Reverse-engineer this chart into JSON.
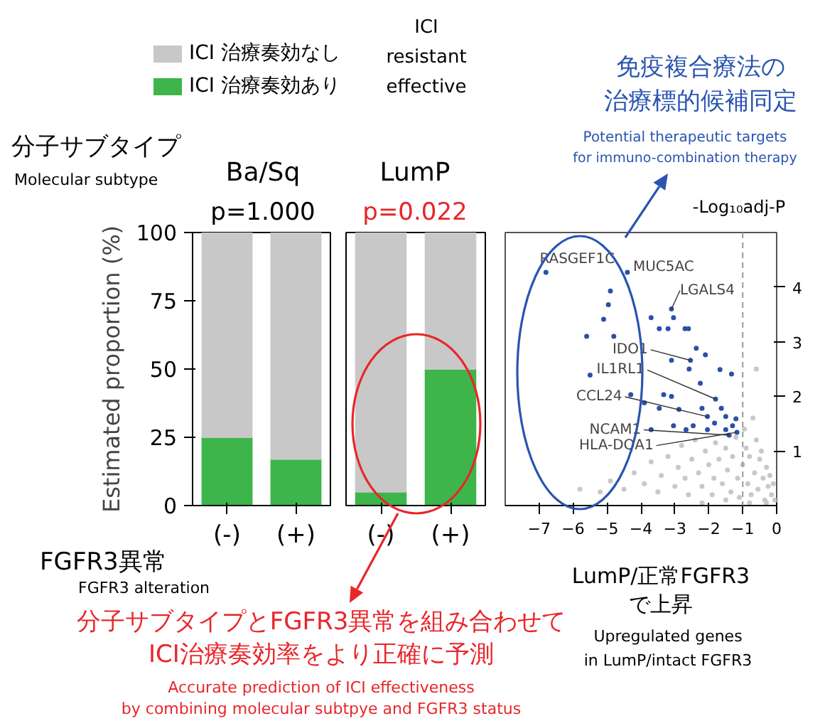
{
  "chart_data": [
    {
      "type": "bar",
      "stacked": true,
      "title": "Ba/Sq",
      "subtitle": "p=1.000",
      "categories": [
        "(-)",
        "(+)"
      ],
      "ylim": [
        0,
        100
      ],
      "yticks": [
        0,
        25,
        50,
        75,
        100
      ],
      "ylabel": "Estimated proportion (%)",
      "xlabel": "FGFR3異常",
      "legend": "top",
      "grid": false,
      "series": [
        {
          "name": "ICI 治療奏効あり",
          "color": "#3db54a",
          "values": [
            25,
            17
          ]
        },
        {
          "name": "ICI 治療奏効なし",
          "color": "#c8c8c8",
          "values": [
            75,
            83
          ]
        }
      ],
      "annotations": [
        "ICI",
        "resistant",
        "effective",
        "分子サブタイプ",
        "Molecular subtype",
        "FGFR3 alteration",
        "分子サブタイプとFGFR3異常を組み合わせて",
        "ICI治療奏効率をより正確に予測",
        "Accurate prediction of ICI effectiveness",
        "by combining molecular subtpye and FGFR3 status"
      ]
    },
    {
      "type": "bar",
      "stacked": true,
      "title": "LumP",
      "subtitle": "p=0.022",
      "categories": [
        "(-)",
        "(+)"
      ],
      "ylim": [
        0,
        100
      ],
      "tick_labels": "x",
      "grid": false,
      "series": [
        {
          "color": "#3db54a",
          "values": [
            5,
            50
          ]
        },
        {
          "color": "#c8c8c8",
          "values": [
            95,
            50
          ]
        }
      ]
    },
    {
      "type": "scatter",
      "xlim": [
        -8,
        0
      ],
      "xticks": [
        -7,
        -6,
        -5,
        -4,
        -3,
        -2,
        -1,
        0
      ],
      "ylim": [
        0,
        5
      ],
      "yticks": [
        1,
        2,
        3,
        4
      ],
      "ylabel": "-Log₁₀adj-P",
      "grid": false,
      "marker": "circle",
      "ref_lines": [
        {
          "axis": "x",
          "value": -1,
          "color": "#999999",
          "line_style": "dashed"
        }
      ],
      "series": [
        {
          "color": "#c8c8c8",
          "x": [
            -5.8,
            -5.2,
            -4.9,
            -4.5,
            -4.2,
            -3.9,
            -3.7,
            -3.5,
            -3.4,
            -3.2,
            -3.0,
            -2.9,
            -2.8,
            -2.7,
            -2.6,
            -2.5,
            -2.4,
            -2.3,
            -2.2,
            -2.1,
            -2.0,
            -1.9,
            -1.85,
            -1.8,
            -1.7,
            -1.6,
            -1.5,
            -1.45,
            -1.35,
            -1.3,
            -1.2,
            -1.15,
            -1.1,
            -1.0,
            -0.95,
            -0.9,
            -0.85,
            -0.8,
            -0.75,
            -0.7,
            -0.65,
            -0.6,
            -0.55,
            -0.5,
            -0.45,
            -0.4,
            -0.35,
            -0.3,
            -0.25,
            -0.2,
            -0.15,
            -0.1,
            -0.05,
            -0.6,
            -0.3,
            -0.8,
            -1.5,
            -2.2
          ],
          "values": [
            0.3,
            0.25,
            0.45,
            0.3,
            0.6,
            0.4,
            0.8,
            0.25,
            0.55,
            0.9,
            0.35,
            0.7,
            1.1,
            0.5,
            0.2,
            0.85,
            1.2,
            0.6,
            0.35,
            1.0,
            0.75,
            0.2,
            0.5,
            1.15,
            0.85,
            0.4,
            1.05,
            0.65,
            0.25,
            0.9,
            1.25,
            0.5,
            0.15,
            0.75,
            1.4,
            1.05,
            0.4,
            0.9,
            0.2,
            1.6,
            0.6,
            1.2,
            0.3,
            0.85,
            1.0,
            0.5,
            0.1,
            0.7,
            0.35,
            0.55,
            0.2,
            0.4,
            0.1,
            2.5,
            0.05,
            0.05,
            0.1,
            0.05
          ]
        },
        {
          "color": "#2a50a8",
          "x": [
            -6.8,
            -4.4,
            -4.9,
            -4.96,
            -5.1,
            -5.6,
            -4.8,
            -3.7,
            -3.1,
            -3.04,
            -3.46,
            -3.2,
            -2.7,
            -2.6,
            -2.37,
            -2.1,
            -2.54,
            -2.58,
            -3.1,
            -5.5,
            -4.3,
            -3.9,
            -3.33,
            -3.1,
            -2.25,
            -1.67,
            -1.33,
            -1.8,
            -2.04,
            -1.5,
            -1.2,
            -1.63,
            -2.88,
            -3.46,
            -3.7,
            -2.67,
            -2.04,
            -1.5,
            -1.17,
            -2.2,
            -1.83,
            -1.3,
            -3.04,
            -1.4,
            -2.46
          ],
          "values": [
            4.27,
            4.27,
            3.93,
            3.68,
            3.41,
            3.1,
            3.1,
            3.44,
            3.6,
            3.44,
            3.24,
            3.24,
            3.24,
            3.24,
            2.88,
            2.76,
            2.66,
            2.5,
            2.66,
            2.39,
            2.03,
            1.88,
            2.03,
            2.0,
            2.24,
            2.49,
            2.41,
            1.95,
            1.63,
            1.63,
            1.59,
            1.78,
            1.76,
            1.78,
            1.39,
            1.39,
            1.39,
            1.39,
            1.34,
            1.78,
            1.51,
            1.46,
            1.46,
            1.29,
            1.46
          ]
        }
      ],
      "annotations": [
        "免疫複合療法の",
        "治療標的候補同定",
        "Potential therapeutic targets",
        "for immuno-combination therapy",
        "LumP/正常FGFR3",
        "で上昇",
        "Upregulated genes",
        "in LumP/intact FGFR3",
        {
          "text": "RASGEF1C",
          "x": -6.8,
          "y": 4.27
        },
        {
          "text": "MUC5AC",
          "x": -4.4,
          "y": 4.27
        },
        {
          "text": "LGALS4",
          "x": -3.1,
          "y": 3.6
        },
        {
          "text": "IDO1",
          "x": -2.54,
          "y": 2.66
        },
        {
          "text": "IL1RL1",
          "x": -1.8,
          "y": 1.95
        },
        {
          "text": "CCL24",
          "x": -2.04,
          "y": 1.63
        },
        {
          "text": "NCAM1",
          "x": -1.4,
          "y": 1.29
        },
        {
          "text": "HLA-DQA1",
          "x": -1.2,
          "y": 1.34
        }
      ]
    }
  ]
}
